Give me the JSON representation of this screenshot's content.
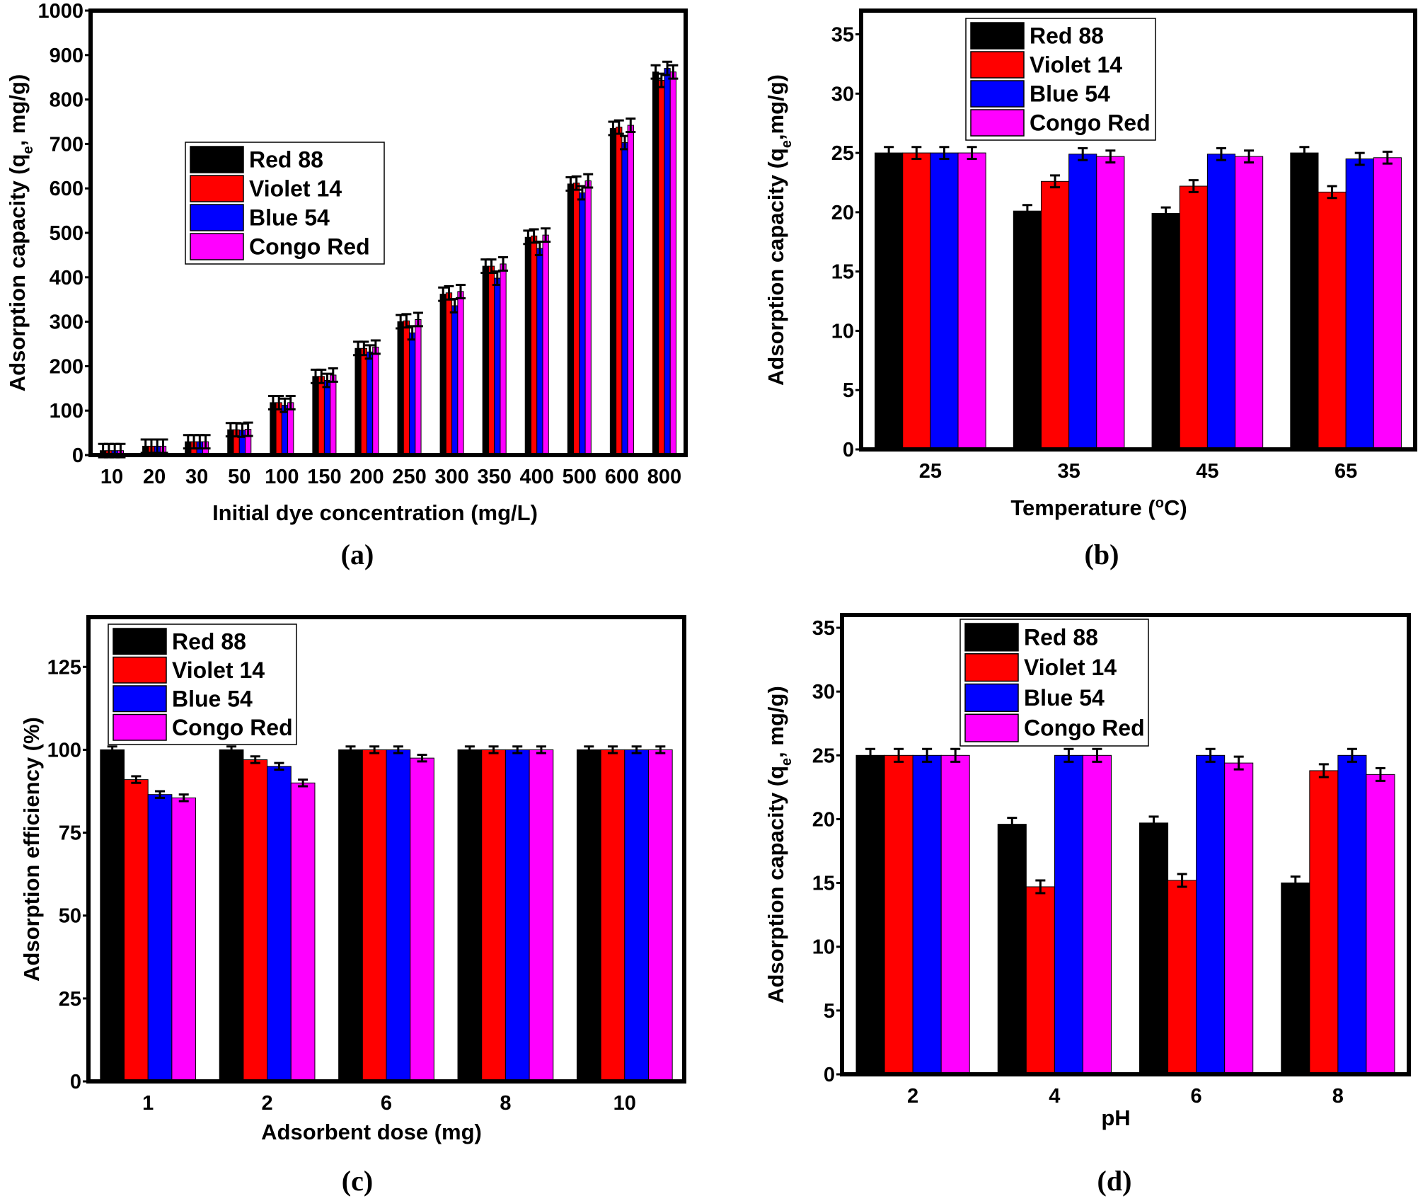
{
  "series_colors": {
    "Red 88": "#000000",
    "Violet 14": "#ff0000",
    "Blue 54": "#0000ff",
    "Congo Red": "#ff00ff"
  },
  "chart_data": [
    {
      "type": "bar",
      "panel_label": "(a)",
      "xlabel": [
        "Initial dye concentration (mg/L)",
        "",
        ""
      ],
      "ylabel": [
        "Adsorption capacity (q",
        "e",
        ", mg/g)"
      ],
      "categories": [
        "10",
        "20",
        "30",
        "50",
        "100",
        "150",
        "200",
        "250",
        "300",
        "350",
        "400",
        "500",
        "600",
        "800"
      ],
      "ylim": [
        0,
        1000
      ],
      "yticks": [
        0,
        100,
        200,
        300,
        400,
        500,
        600,
        700,
        800,
        900,
        1000
      ],
      "legend": "center-left",
      "error_bar": 15,
      "series": [
        {
          "name": "Red 88",
          "values": [
            10,
            20,
            30,
            57,
            118,
            177,
            240,
            300,
            362,
            425,
            490,
            610,
            735,
            862
          ]
        },
        {
          "name": "Violet 14",
          "values": [
            10,
            20,
            30,
            57,
            118,
            177,
            240,
            302,
            365,
            425,
            493,
            612,
            738,
            843
          ]
        },
        {
          "name": "Blue 54",
          "values": [
            10,
            20,
            30,
            56,
            112,
            168,
            232,
            275,
            336,
            398,
            465,
            590,
            703,
            870
          ]
        },
        {
          "name": "Congo Red",
          "values": [
            10,
            20,
            30,
            58,
            118,
            180,
            243,
            305,
            368,
            430,
            495,
            617,
            742,
            862
          ]
        }
      ]
    },
    {
      "type": "bar",
      "panel_label": "(b)",
      "xlabel": [
        "Temperature (",
        "o",
        "C)"
      ],
      "ylabel": [
        "Adsorption capacity (q",
        "e",
        ",mg/g)"
      ],
      "categories": [
        "25",
        "35",
        "45",
        "65"
      ],
      "ylim": [
        0,
        37
      ],
      "yticks": [
        0,
        5,
        10,
        15,
        20,
        25,
        30,
        35
      ],
      "legend": "top-center",
      "error_bar": 0.5,
      "series": [
        {
          "name": "Red 88",
          "values": [
            25,
            20.1,
            19.9,
            25
          ]
        },
        {
          "name": "Violet 14",
          "values": [
            25,
            22.6,
            22.2,
            21.7
          ]
        },
        {
          "name": "Blue 54",
          "values": [
            25,
            24.9,
            24.9,
            24.5
          ]
        },
        {
          "name": "Congo Red",
          "values": [
            25,
            24.7,
            24.7,
            24.6
          ]
        }
      ]
    },
    {
      "type": "bar",
      "panel_label": "(c)",
      "xlabel": [
        "Adsorbent dose (mg)",
        "",
        ""
      ],
      "ylabel": [
        "Adsorption efficiency (%)",
        "",
        ""
      ],
      "categories": [
        "1",
        "2",
        "6",
        "8",
        "10"
      ],
      "ylim": [
        0,
        140
      ],
      "yticks": [
        0,
        25,
        50,
        75,
        100,
        125
      ],
      "legend": "top-left",
      "error_bar": 1,
      "series": [
        {
          "name": "Red 88",
          "values": [
            100,
            100,
            100,
            100,
            100
          ]
        },
        {
          "name": "Violet 14",
          "values": [
            91,
            97,
            100,
            100,
            100
          ]
        },
        {
          "name": "Blue 54",
          "values": [
            86.5,
            95,
            100,
            100,
            100
          ]
        },
        {
          "name": "Congo Red",
          "values": [
            85.5,
            90,
            97.5,
            100,
            100
          ]
        }
      ]
    },
    {
      "type": "bar",
      "panel_label": "(d)",
      "xlabel": [
        "pH",
        "",
        ""
      ],
      "ylabel": [
        "Adsorption capacity (q",
        "e",
        ", mg/g)"
      ],
      "categories": [
        "2",
        "4",
        "6",
        "8"
      ],
      "ylim": [
        0,
        36
      ],
      "yticks": [
        0,
        5,
        10,
        15,
        20,
        25,
        30,
        35
      ],
      "legend": "top-center",
      "error_bar": 0.5,
      "series": [
        {
          "name": "Red 88",
          "values": [
            25,
            19.6,
            19.7,
            15
          ]
        },
        {
          "name": "Violet 14",
          "values": [
            25,
            14.7,
            15.2,
            23.8
          ]
        },
        {
          "name": "Blue 54",
          "values": [
            25,
            25,
            25,
            25
          ]
        },
        {
          "name": "Congo Red",
          "values": [
            25,
            25,
            24.4,
            23.5
          ]
        }
      ]
    }
  ]
}
